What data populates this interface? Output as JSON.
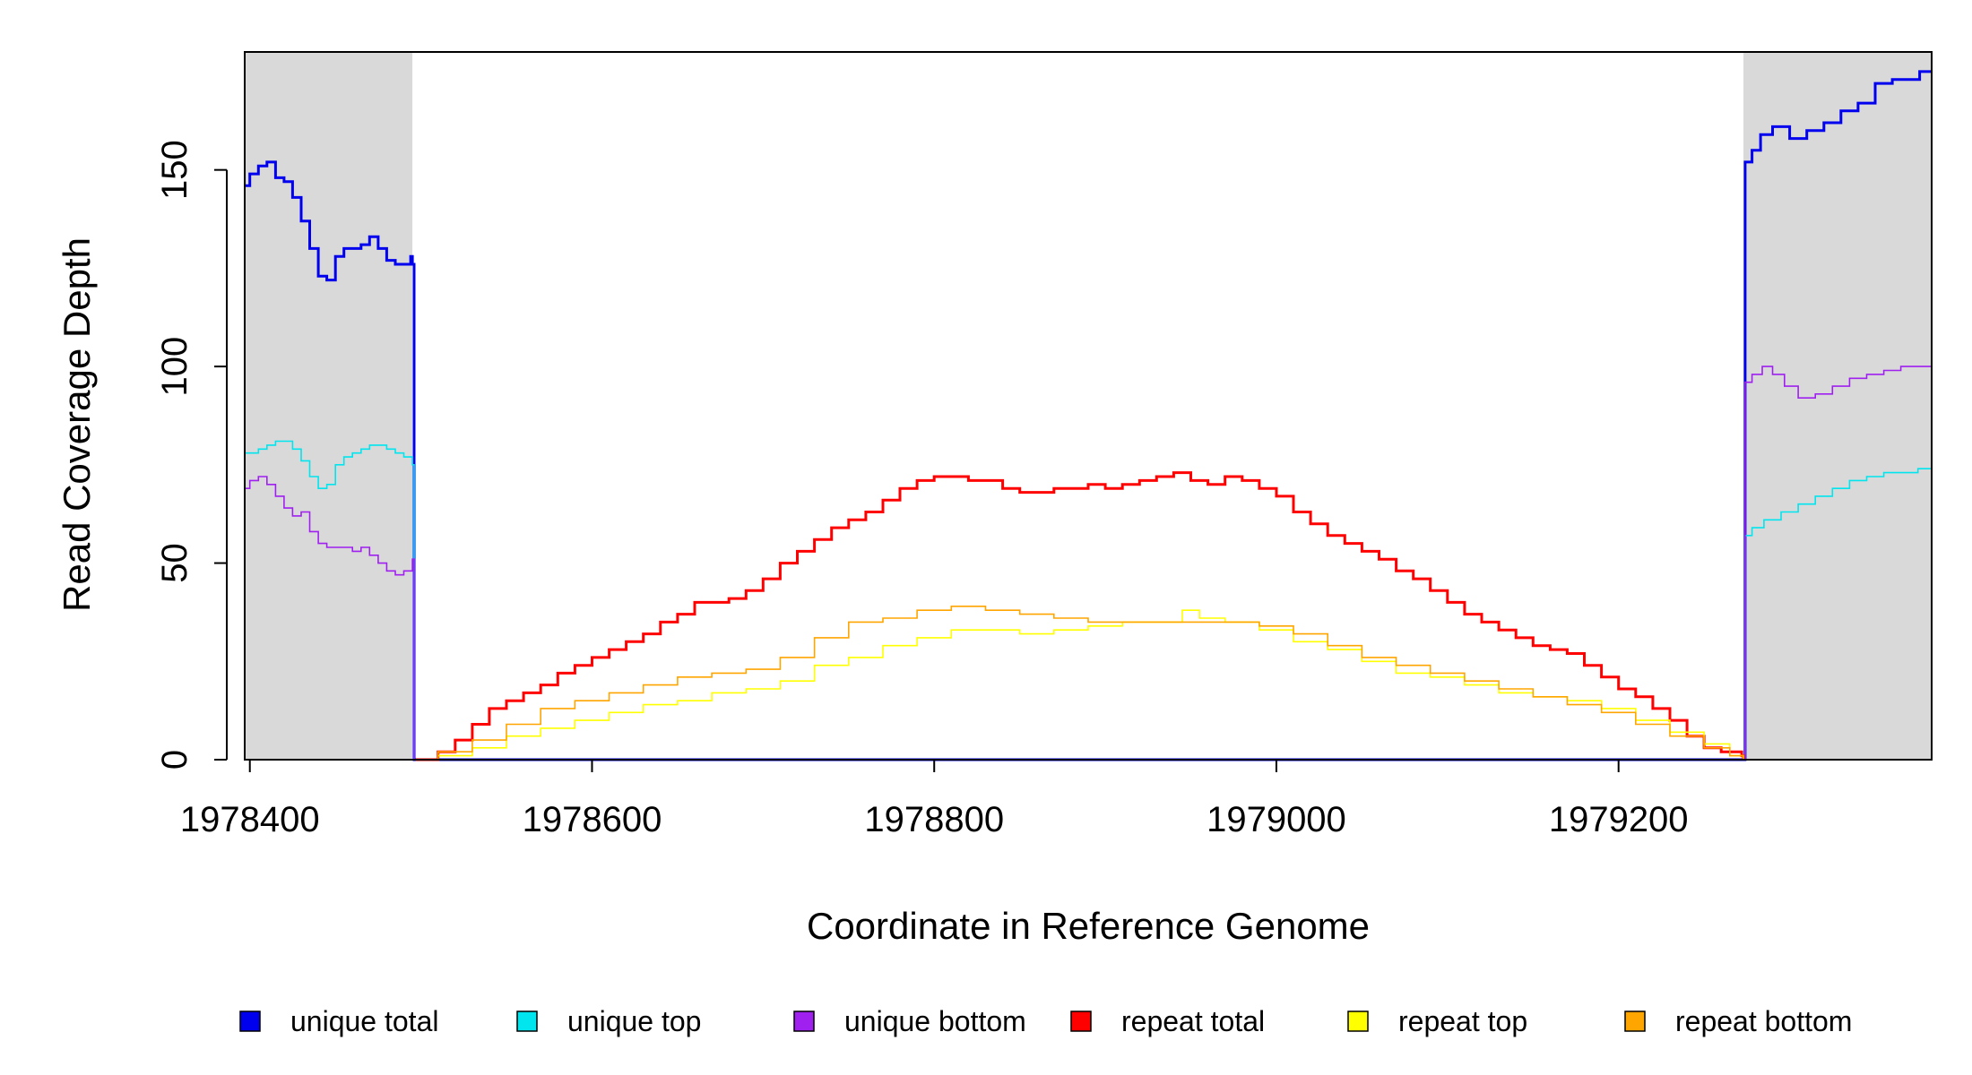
{
  "chart_data": {
    "type": "line",
    "title": "",
    "xlabel": "Coordinate in Reference Genome",
    "ylabel": "Read Coverage Depth",
    "xlim": [
      1978397,
      1979383
    ],
    "ylim": [
      0,
      180
    ],
    "x_ticks": [
      1978400,
      1978600,
      1978800,
      1979000,
      1979200
    ],
    "y_ticks": [
      0,
      50,
      100,
      150
    ],
    "grid": false,
    "legend_position": "bottom",
    "shaded_regions": [
      {
        "x_start": 1978397,
        "x_end": 1978495,
        "color": "#d9d9d9"
      },
      {
        "x_start": 1979273,
        "x_end": 1979383,
        "color": "#d9d9d9"
      }
    ],
    "series": [
      {
        "name": "unique total",
        "color": "#0000ee",
        "line_width": 3,
        "x": [
          1978397,
          1978400,
          1978405,
          1978410,
          1978415,
          1978420,
          1978425,
          1978430,
          1978435,
          1978440,
          1978445,
          1978450,
          1978455,
          1978460,
          1978465,
          1978470,
          1978475,
          1978480,
          1978485,
          1978490,
          1978494,
          1978495,
          1978496,
          1979273,
          1979274,
          1979278,
          1979283,
          1979290,
          1979300,
          1979310,
          1979320,
          1979330,
          1979340,
          1979350,
          1979360,
          1979370,
          1979376,
          1979383
        ],
        "y": [
          146,
          149,
          151,
          152,
          148,
          147,
          143,
          137,
          130,
          123,
          122,
          128,
          130,
          130,
          131,
          133,
          130,
          127,
          126,
          126,
          128,
          126,
          0,
          0,
          152,
          155,
          159,
          161,
          158,
          160,
          162,
          165,
          167,
          172,
          173,
          173,
          175,
          175
        ]
      },
      {
        "name": "unique top",
        "color": "#00e5ee",
        "line_width": 1.6,
        "x": [
          1978397,
          1978405,
          1978410,
          1978415,
          1978420,
          1978425,
          1978430,
          1978435,
          1978440,
          1978445,
          1978450,
          1978455,
          1978460,
          1978465,
          1978470,
          1978475,
          1978480,
          1978485,
          1978490,
          1978495,
          1978496,
          1979273,
          1979274,
          1979278,
          1979285,
          1979295,
          1979305,
          1979315,
          1979325,
          1979335,
          1979345,
          1979355,
          1979365,
          1979375,
          1979383
        ],
        "y": [
          78,
          79,
          80,
          81,
          81,
          79,
          76,
          72,
          69,
          70,
          75,
          77,
          78,
          79,
          80,
          80,
          79,
          78,
          77,
          75,
          0,
          0,
          57,
          59,
          61,
          63,
          65,
          67,
          69,
          71,
          72,
          73,
          73,
          74,
          74
        ]
      },
      {
        "name": "unique bottom",
        "color": "#a020f0",
        "line_width": 1.6,
        "x": [
          1978397,
          1978400,
          1978405,
          1978410,
          1978415,
          1978420,
          1978425,
          1978430,
          1978435,
          1978440,
          1978445,
          1978450,
          1978455,
          1978460,
          1978465,
          1978470,
          1978475,
          1978480,
          1978485,
          1978490,
          1978495,
          1978496,
          1979273,
          1979274,
          1979278,
          1979284,
          1979290,
          1979297,
          1979305,
          1979315,
          1979325,
          1979335,
          1979345,
          1979355,
          1979365,
          1979375,
          1979383
        ],
        "y": [
          69,
          71,
          72,
          70,
          67,
          64,
          62,
          63,
          58,
          55,
          54,
          54,
          54,
          53,
          54,
          52,
          50,
          48,
          47,
          48,
          51,
          0,
          0,
          96,
          98,
          100,
          98,
          95,
          92,
          93,
          95,
          97,
          98,
          99,
          100,
          100,
          101
        ]
      },
      {
        "name": "repeat total",
        "color": "#ff0000",
        "line_width": 3,
        "x": [
          1978497,
          1978510,
          1978520,
          1978530,
          1978540,
          1978550,
          1978560,
          1978570,
          1978580,
          1978590,
          1978600,
          1978610,
          1978620,
          1978630,
          1978640,
          1978650,
          1978660,
          1978670,
          1978680,
          1978690,
          1978700,
          1978710,
          1978720,
          1978730,
          1978740,
          1978750,
          1978760,
          1978770,
          1978780,
          1978790,
          1978800,
          1978810,
          1978820,
          1978830,
          1978840,
          1978850,
          1978860,
          1978870,
          1978880,
          1978890,
          1978900,
          1978910,
          1978920,
          1978930,
          1978940,
          1978945,
          1978950,
          1978960,
          1978970,
          1978980,
          1978990,
          1979000,
          1979010,
          1979020,
          1979030,
          1979040,
          1979050,
          1979060,
          1979070,
          1979080,
          1979090,
          1979100,
          1979110,
          1979120,
          1979130,
          1979140,
          1979150,
          1979160,
          1979170,
          1979180,
          1979190,
          1979200,
          1979210,
          1979220,
          1979230,
          1979240,
          1979250,
          1979260,
          1979272,
          1979273
        ],
        "y": [
          0,
          2,
          5,
          9,
          13,
          15,
          17,
          19,
          22,
          24,
          26,
          28,
          30,
          32,
          35,
          37,
          40,
          40,
          41,
          43,
          46,
          50,
          53,
          56,
          59,
          61,
          63,
          66,
          69,
          71,
          72,
          72,
          71,
          71,
          69,
          68,
          68,
          69,
          69,
          70,
          69,
          70,
          71,
          72,
          73,
          73,
          71,
          70,
          72,
          71,
          69,
          67,
          63,
          60,
          57,
          55,
          53,
          51,
          48,
          46,
          43,
          40,
          37,
          35,
          33,
          31,
          29,
          28,
          27,
          24,
          21,
          18,
          16,
          13,
          10,
          6,
          3,
          2,
          1,
          0
        ]
      },
      {
        "name": "repeat top",
        "color": "#ffff00",
        "line_width": 1.6,
        "x": [
          1978497,
          1978510,
          1978530,
          1978550,
          1978570,
          1978590,
          1978610,
          1978630,
          1978650,
          1978670,
          1978690,
          1978710,
          1978730,
          1978750,
          1978770,
          1978790,
          1978810,
          1978830,
          1978850,
          1978870,
          1978890,
          1978910,
          1978930,
          1978945,
          1978955,
          1978970,
          1978990,
          1979010,
          1979030,
          1979050,
          1979070,
          1979090,
          1979110,
          1979130,
          1979150,
          1979170,
          1979190,
          1979210,
          1979230,
          1979250,
          1979265,
          1979273
        ],
        "y": [
          0,
          1,
          3,
          6,
          8,
          10,
          12,
          14,
          15,
          17,
          18,
          20,
          24,
          26,
          29,
          31,
          33,
          33,
          32,
          33,
          34,
          35,
          35,
          38,
          36,
          35,
          33,
          30,
          28,
          25,
          22,
          21,
          19,
          17,
          16,
          15,
          13,
          10,
          7,
          4,
          1,
          0
        ]
      },
      {
        "name": "repeat bottom",
        "color": "#ffa500",
        "line_width": 1.6,
        "x": [
          1978497,
          1978510,
          1978530,
          1978550,
          1978570,
          1978590,
          1978610,
          1978630,
          1978650,
          1978670,
          1978690,
          1978710,
          1978730,
          1978750,
          1978770,
          1978790,
          1978810,
          1978830,
          1978850,
          1978870,
          1978890,
          1978910,
          1978930,
          1978950,
          1978970,
          1978990,
          1979010,
          1979030,
          1979050,
          1979070,
          1979090,
          1979110,
          1979130,
          1979150,
          1979170,
          1979190,
          1979210,
          1979230,
          1979250,
          1979265,
          1979273
        ],
        "y": [
          0,
          2,
          5,
          9,
          13,
          15,
          17,
          19,
          21,
          22,
          23,
          26,
          31,
          35,
          36,
          38,
          39,
          38,
          37,
          36,
          35,
          35,
          35,
          35,
          35,
          34,
          32,
          29,
          26,
          24,
          22,
          20,
          18,
          16,
          14,
          12,
          9,
          6,
          3,
          1,
          0
        ]
      }
    ]
  }
}
